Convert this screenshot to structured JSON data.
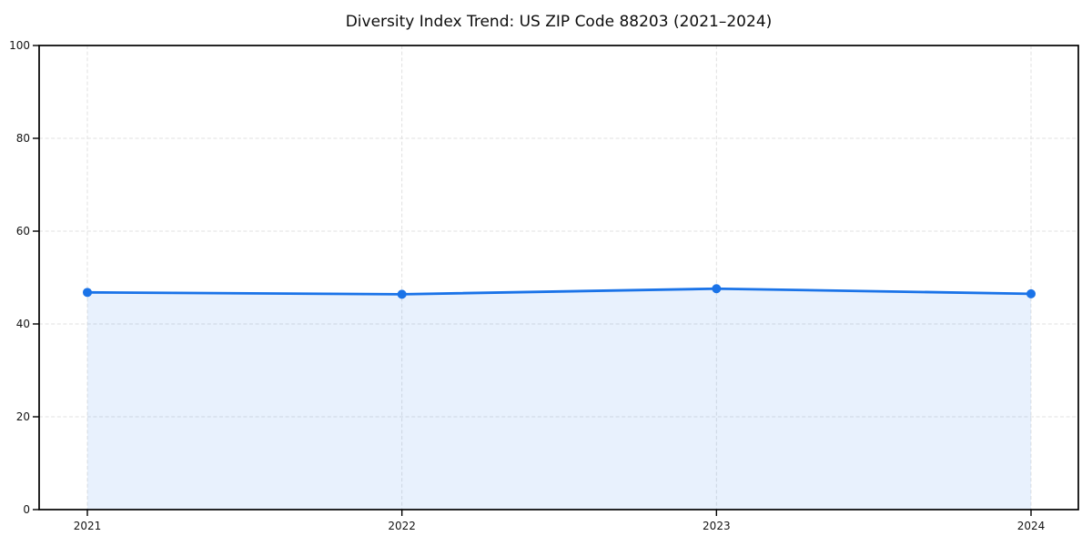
{
  "figure": {
    "title": "Diversity Index Trend: US ZIP Code 88203 (2021–2024)"
  },
  "chart_data": {
    "type": "area",
    "title": "Diversity Index Trend: US ZIP Code 88203 (2021–2024)",
    "categories": [
      "2021",
      "2022",
      "2023",
      "2024"
    ],
    "series": [
      {
        "name": "Diversity Index",
        "values": [
          46.8,
          46.4,
          47.6,
          46.5
        ]
      }
    ],
    "xlabel": "",
    "ylabel": "",
    "ylim": [
      0,
      100
    ],
    "yticks": [
      0,
      20,
      40,
      60,
      80,
      100
    ],
    "xticks": [
      "2021",
      "2022",
      "2023",
      "2024"
    ],
    "grid": {
      "visible": true,
      "style": "dashed",
      "both_axes": true
    },
    "legend": {
      "visible": false
    },
    "marker": {
      "shape": "circle",
      "radius": 5
    },
    "colors": {
      "line": "#1a73e8",
      "marker": "#1a73e8",
      "fill": "rgba(26,115,232,0.10)",
      "grid": "#e0e0e0",
      "spine": "#000000",
      "text": "#141414",
      "background": "#ffffff"
    }
  }
}
